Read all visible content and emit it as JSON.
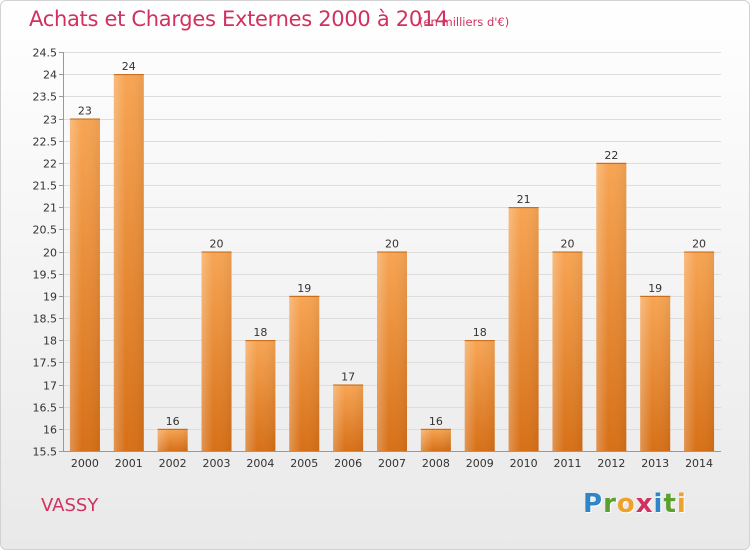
{
  "header": {
    "title": "Achats et Charges Externes 2000 à 2014",
    "subtitle": "(en milliers d'€)"
  },
  "footer": {
    "commune": "VASSY",
    "logo_letters": [
      {
        "ch": "P",
        "color": "#2e86c9"
      },
      {
        "ch": "r",
        "color": "#5aa02c"
      },
      {
        "ch": "o",
        "color": "#f0a12a"
      },
      {
        "ch": "x",
        "color": "#d2315f"
      },
      {
        "ch": "i",
        "color": "#2e86c9"
      },
      {
        "ch": "t",
        "color": "#5aa02c"
      },
      {
        "ch": "i",
        "color": "#f0a12a"
      }
    ]
  },
  "chart_data": {
    "type": "bar",
    "categories": [
      "2000",
      "2001",
      "2002",
      "2003",
      "2004",
      "2005",
      "2006",
      "2007",
      "2008",
      "2009",
      "2010",
      "2011",
      "2012",
      "2013",
      "2014"
    ],
    "values": [
      23,
      24,
      16,
      20,
      18,
      19,
      17,
      20,
      16,
      18,
      21,
      20,
      22,
      19,
      20
    ],
    "ylim": [
      15.5,
      24.5
    ],
    "yticks": [
      "15.5",
      "16",
      "16.5",
      "17",
      "17.5",
      "18",
      "18.5",
      "19",
      "19.5",
      "20",
      "20.5",
      "21",
      "21.5",
      "22",
      "22.5",
      "23",
      "23.5",
      "24",
      "24.5"
    ],
    "grid": true,
    "bar_color": "#f0962e"
  }
}
